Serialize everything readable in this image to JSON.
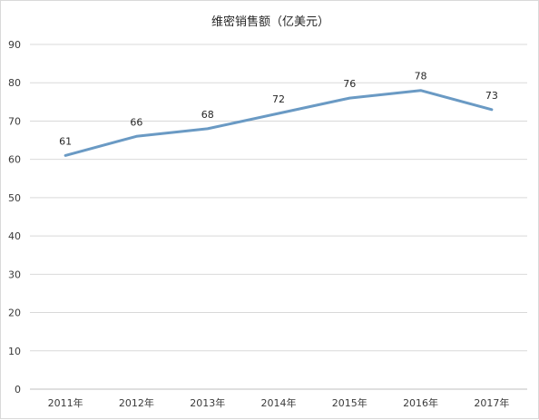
{
  "chart_data": {
    "type": "line",
    "title": "维密销售额（亿美元）",
    "categories": [
      "2011年",
      "2012年",
      "2013年",
      "2014年",
      "2015年",
      "2016年",
      "2017年"
    ],
    "series": [
      {
        "values": [
          61,
          66,
          68,
          72,
          76,
          78,
          73
        ]
      }
    ],
    "ylim": [
      0,
      90
    ],
    "yticks": [
      0,
      10,
      20,
      30,
      40,
      50,
      60,
      70,
      80,
      90
    ],
    "grid": true,
    "data_labels": true,
    "xlabel": "",
    "ylabel": "",
    "colors": {
      "line": "#6a9ac4",
      "grid": "#d9d9d9",
      "axis": "#bfbfbf"
    }
  }
}
